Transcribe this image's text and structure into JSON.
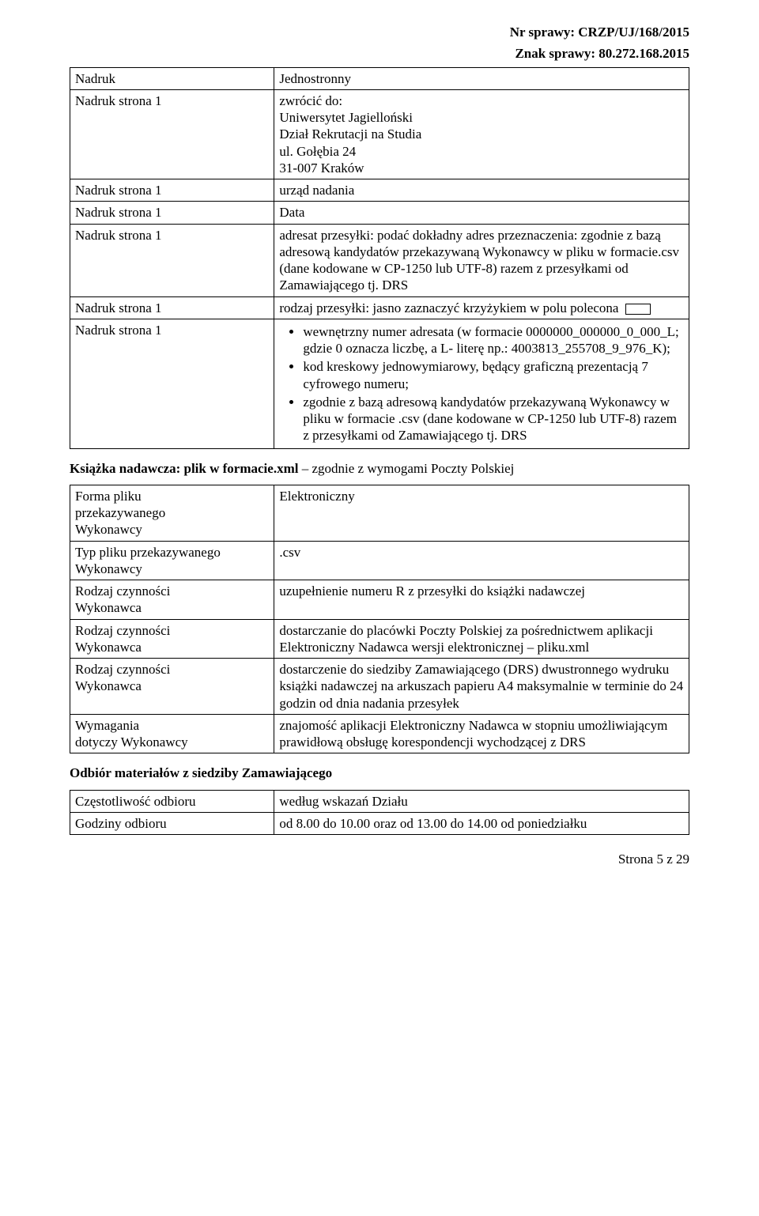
{
  "header": {
    "line1": "Nr sprawy: CRZP/UJ/168/2015",
    "line2": "Znak sprawy: 80.272.168.2015"
  },
  "table1": {
    "rows": [
      {
        "left": "Nadruk",
        "right_lines": [
          "Jednostronny"
        ]
      },
      {
        "left": "Nadruk strona 1",
        "right_lines": [
          "zwrócić do:",
          "Uniwersytet Jagielloński",
          "Dział Rekrutacji na Studia",
          "ul. Gołębia 24",
          "31-007 Kraków"
        ]
      },
      {
        "left": "Nadruk strona 1",
        "right_lines": [
          "urząd nadania"
        ]
      },
      {
        "left": "Nadruk strona 1",
        "right_lines": [
          "Data"
        ]
      },
      {
        "left": "Nadruk strona 1",
        "right_lines": [
          "adresat przesyłki: podać dokładny adres przeznaczenia: zgodnie z bazą adresową kandydatów przekazywaną Wykonawcy w pliku w formacie.csv (dane kodowane w CP-1250 lub UTF-8) razem z przesyłkami od Zamawiającego tj. DRS"
        ]
      },
      {
        "left": "Nadruk strona 1",
        "type": "polecona",
        "prefix": "rodzaj przesyłki: jasno zaznaczyć krzyżykiem w polu polecona"
      },
      {
        "left": "Nadruk strona 1",
        "type": "bullets",
        "items": [
          "wewnętrzny numer adresata (w formacie 0000000_000000_0_000_L; gdzie 0 oznacza liczbę, a L- literę np.: 4003813_255708_9_976_K);",
          "kod kreskowy jednowymiarowy, będący graficzną prezentacją 7 cyfrowego numeru;",
          "zgodnie z bazą adresową kandydatów przekazywaną Wykonawcy w pliku w formacie .csv (dane kodowane w CP-1250 lub UTF-8) razem z przesyłkami od Zamawiającego tj. DRS"
        ]
      }
    ]
  },
  "section1": {
    "bold": "Książka nadawcza: plik w formacie.xml",
    "rest": " – zgodnie z wymogami Poczty Polskiej"
  },
  "table2": {
    "rows": [
      {
        "left_lines": [
          "Forma pliku",
          "przekazywanego",
          "Wykonawcy"
        ],
        "right_lines": [
          "Elektroniczny"
        ]
      },
      {
        "left_lines": [
          "Typ pliku przekazywanego",
          "Wykonawcy"
        ],
        "right_lines": [
          ".csv"
        ]
      },
      {
        "left_lines": [
          "Rodzaj czynności",
          "Wykonawca"
        ],
        "right_lines": [
          "uzupełnienie numeru R z przesyłki do książki nadawczej"
        ]
      },
      {
        "left_lines": [
          "Rodzaj czynności",
          "Wykonawca"
        ],
        "right_lines": [
          "dostarczanie do placówki Poczty Polskiej za pośrednictwem aplikacji Elektroniczny Nadawca wersji elektronicznej – pliku.xml"
        ]
      },
      {
        "left_lines": [
          "Rodzaj czynności",
          "Wykonawca"
        ],
        "right_lines": [
          "dostarczenie do siedziby Zamawiającego (DRS) dwustronnego wydruku książki nadawczej na arkuszach papieru A4 maksymalnie w terminie do 24 godzin od dnia nadania przesyłek"
        ]
      },
      {
        "left_lines": [
          "Wymagania",
          "dotyczy Wykonawcy"
        ],
        "right_lines": [
          "znajomość aplikacji Elektroniczny Nadawca w stopniu umożliwiającym prawidłową obsługę korespondencji wychodzącej z DRS"
        ]
      }
    ]
  },
  "section2": {
    "bold": "Odbiór materiałów z siedziby Zamawiającego"
  },
  "table3": {
    "rows": [
      {
        "left_lines": [
          "Częstotliwość odbioru"
        ],
        "right_lines": [
          "według wskazań Działu"
        ]
      },
      {
        "left_lines": [
          "Godziny odbioru"
        ],
        "right_lines": [
          "od 8.00 do 10.00 oraz od 13.00 do 14.00 od poniedziałku"
        ]
      }
    ]
  },
  "footer": "Strona 5 z 29"
}
